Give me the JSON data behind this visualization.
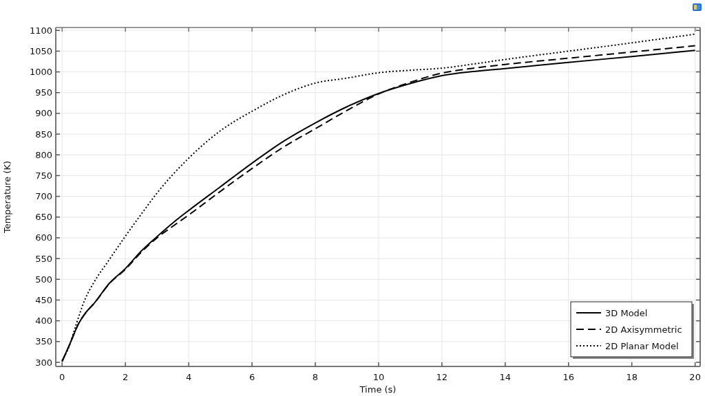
{
  "chart_data": {
    "type": "line",
    "xlabel": "Time (s)",
    "ylabel": "Temperature (K)",
    "xlim": [
      -0.2,
      20.16
    ],
    "ylim": [
      290,
      1107
    ],
    "xticks": [
      0,
      2,
      4,
      6,
      8,
      10,
      12,
      14,
      16,
      18,
      20
    ],
    "yticks": [
      300,
      350,
      400,
      450,
      500,
      550,
      600,
      650,
      700,
      750,
      800,
      850,
      900,
      950,
      1000,
      1050,
      1100
    ],
    "grid": true,
    "legend": "bottom right",
    "series": [
      {
        "name": "3D Model",
        "color": "#000000",
        "line_style": "solid",
        "x": [
          0,
          0.25,
          0.52,
          0.75,
          1,
          1.5,
          2,
          2.5,
          3,
          3.5,
          4,
          5,
          6,
          7,
          8,
          9,
          10,
          11,
          12,
          13,
          14,
          16,
          18,
          20
        ],
        "values": [
          302,
          345,
          393,
          420,
          441,
          491,
          526,
          568,
          603,
          636,
          666,
          723,
          780,
          833,
          877,
          916,
          948,
          972,
          991,
          1001,
          1008,
          1023,
          1037,
          1052
        ]
      },
      {
        "name": "2D Axisymmetric",
        "color": "#000000",
        "line_style": "dashed",
        "x": [
          0,
          0.25,
          0.52,
          0.75,
          1,
          1.5,
          2,
          2.5,
          3,
          3.5,
          4,
          5,
          6,
          7,
          8,
          9,
          10,
          11,
          12,
          13,
          14,
          16,
          18,
          20
        ],
        "values": [
          302,
          345,
          393,
          420,
          441,
          490,
          524,
          565,
          600,
          628,
          655,
          712,
          767,
          819,
          863,
          907,
          947,
          975,
          997,
          1009,
          1018,
          1033,
          1048,
          1063
        ]
      },
      {
        "name": "2D Planar Model",
        "color": "#000000",
        "line_style": "dotted",
        "x": [
          0,
          0.22,
          0.43,
          0.72,
          1,
          1.45,
          2,
          2.5,
          3,
          4,
          5,
          6,
          7,
          8,
          9,
          10,
          11,
          12,
          13,
          14,
          16,
          18,
          20
        ],
        "values": [
          304,
          338,
          388,
          451,
          492,
          543,
          604,
          657,
          708,
          792,
          858,
          905,
          945,
          973,
          985,
          998,
          1004,
          1009,
          1019,
          1030,
          1050,
          1070,
          1091
        ]
      }
    ]
  }
}
